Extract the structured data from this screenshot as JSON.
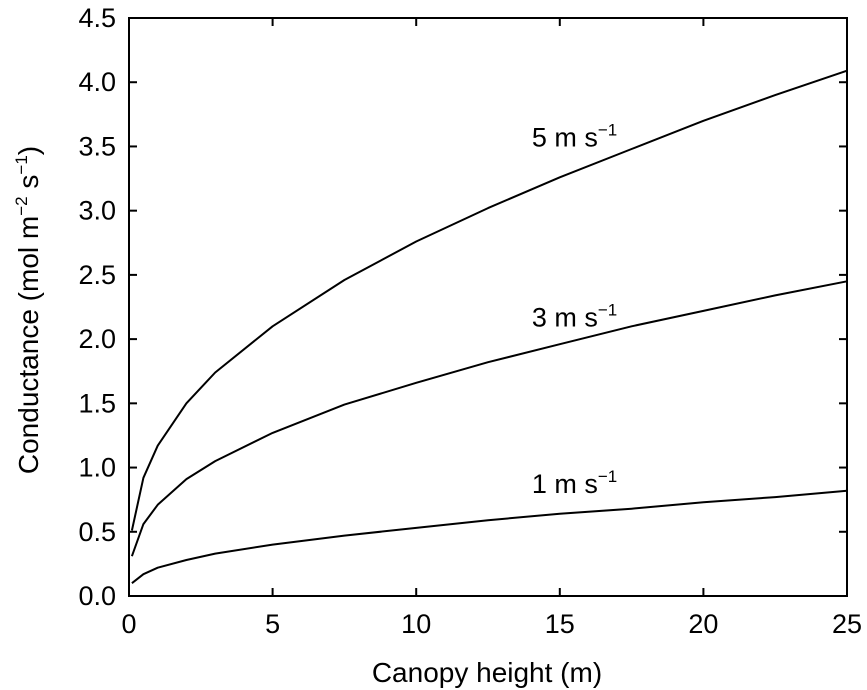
{
  "chart_data": {
    "type": "line",
    "xlabel": "Canopy height (m)",
    "ylabel_parts": {
      "main": "Conductance (mol m",
      "exp1": "−2",
      "mid": " s",
      "exp2": "−1",
      "end": ")"
    },
    "xlim": [
      0,
      25
    ],
    "ylim": [
      0,
      4.5
    ],
    "xticks": [
      0,
      5,
      10,
      15,
      20,
      25
    ],
    "xtick_labels": [
      "0",
      "5",
      "10",
      "15",
      "20",
      "25"
    ],
    "yticks": [
      0,
      0.5,
      1.0,
      1.5,
      2.0,
      2.5,
      3.0,
      3.5,
      4.0,
      4.5
    ],
    "ytick_labels": [
      "0.0",
      "0.5",
      "1.0",
      "1.5",
      "2.0",
      "2.5",
      "3.0",
      "3.5",
      "4.0",
      "4.5"
    ],
    "grid": false,
    "legend": "none",
    "series": [
      {
        "name": "5 m s−1",
        "label_main": "5 m s",
        "label_exp": "−1",
        "x": [
          0.1,
          0.5,
          1,
          2,
          3,
          5,
          7.5,
          10,
          12.5,
          15,
          17.5,
          20,
          22.5,
          25
        ],
        "y": [
          0.51,
          0.92,
          1.17,
          1.5,
          1.74,
          2.1,
          2.46,
          2.76,
          3.02,
          3.26,
          3.48,
          3.7,
          3.9,
          4.09
        ]
      },
      {
        "name": "3 m s−1",
        "label_main": "3 m s",
        "label_exp": "−1",
        "x": [
          0.1,
          0.5,
          1,
          2,
          3,
          5,
          7.5,
          10,
          12.5,
          15,
          17.5,
          20,
          22.5,
          25
        ],
        "y": [
          0.31,
          0.56,
          0.71,
          0.91,
          1.05,
          1.27,
          1.49,
          1.66,
          1.82,
          1.96,
          2.1,
          2.22,
          2.34,
          2.45
        ]
      },
      {
        "name": "1 m s−1",
        "label_main": "1 m s",
        "label_exp": "−1",
        "x": [
          0.1,
          0.5,
          1,
          2,
          3,
          5,
          7.5,
          10,
          12.5,
          15,
          17.5,
          20,
          22.5,
          25
        ],
        "y": [
          0.1,
          0.17,
          0.22,
          0.28,
          0.33,
          0.4,
          0.47,
          0.53,
          0.59,
          0.64,
          0.68,
          0.73,
          0.77,
          0.82
        ]
      }
    ]
  }
}
